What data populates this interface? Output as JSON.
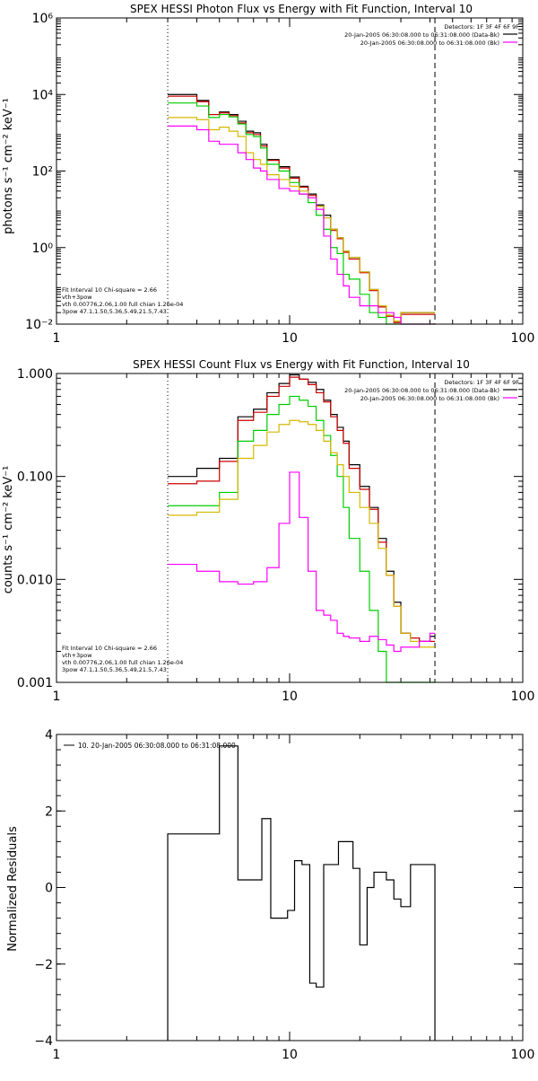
{
  "chart_data": [
    {
      "type": "line",
      "title": "SPEX HESSI Photon Flux vs Energy with Fit Function, Interval 10",
      "ylabel": "photons s⁻¹ cm⁻² keV⁻¹",
      "xlabel": "",
      "xscale": "log",
      "yscale": "log",
      "xlim": [
        1,
        100
      ],
      "ylim": [
        0.01,
        1000000
      ],
      "x_ticks": [
        {
          "v": 1,
          "label": "1"
        },
        {
          "v": 10,
          "label": "10"
        },
        {
          "v": 100,
          "label": "100"
        }
      ],
      "y_ticks": [
        {
          "v": 0.01,
          "label": "10⁻²"
        },
        {
          "v": 1,
          "label": "10⁰"
        },
        {
          "v": 100,
          "label": "10²"
        },
        {
          "v": 10000,
          "label": "10⁴"
        },
        {
          "v": 1000000,
          "label": "10⁶"
        }
      ],
      "vlines": [
        {
          "x": 3.0,
          "style": "dotted"
        },
        {
          "x": 42,
          "style": "dashed"
        }
      ],
      "legend_top": [
        "Detectors: 1F 3F 4F 6F 9F",
        "20-Jan-2005 06:30:08.000 to 06:31:08.000 (Data-Bk)",
        "20-Jan-2005 06:30:08.000 to 06:31:08.000 (Bk)"
      ],
      "legend_top_colors": [
        "",
        "#000000",
        "#ff00ff"
      ],
      "legend_bottom": [
        "Fit Interval 10    Chi-square = 2.66",
        "vth+3pow",
        "vth 0.00776,2.06,1.00  full chian 1.26e-04",
        "3pow 47.1,1.50,5.36,5.49,21.5,7.43"
      ],
      "legend_bottom_colors": [
        "",
        "#cc0000",
        "#00cc00",
        "#d4b800"
      ],
      "edges": [
        3.0,
        3.5,
        4.0,
        4.5,
        5.0,
        5.5,
        6.0,
        6.5,
        7.0,
        7.5,
        8.0,
        9.0,
        10.0,
        11.0,
        12.0,
        13.0,
        14.0,
        15.0,
        16.0,
        17.0,
        18.0,
        20.0,
        22.0,
        24.0,
        26.0,
        28.0,
        30.0,
        35.0,
        42.0
      ],
      "series": [
        {
          "color": "#000000",
          "values": [
            10000,
            10000,
            7000,
            3000,
            3500,
            3000,
            2000,
            1100,
            1000,
            500,
            200,
            130,
            70,
            40,
            25,
            13,
            7,
            3,
            1.8,
            0.8,
            0.55,
            0.23,
            0.08,
            0.03,
            0.017,
            0.012,
            0.02,
            0.02
          ]
        },
        {
          "color": "#cc0000",
          "values": [
            9000,
            9000,
            6500,
            3000,
            3300,
            2800,
            1800,
            1000,
            900,
            450,
            190,
            120,
            65,
            38,
            23,
            12,
            6,
            2.8,
            1.7,
            0.75,
            0.5,
            0.22,
            0.075,
            0.028,
            0.016,
            0.011,
            0.018,
            0.018
          ]
        },
        {
          "color": "#00cc00",
          "values": [
            6000,
            6000,
            5000,
            2500,
            3000,
            2600,
            1700,
            900,
            800,
            400,
            150,
            100,
            50,
            25,
            15,
            7,
            3,
            1,
            0.7,
            0.2,
            0.15,
            0.06,
            0.02,
            0.015,
            0.008,
            0.006,
            0.01,
            0.01
          ]
        },
        {
          "color": "#d4b800",
          "values": [
            2500,
            2500,
            2200,
            1200,
            1400,
            1100,
            800,
            300,
            200,
            150,
            80,
            60,
            40,
            30,
            20,
            12,
            6,
            3,
            1.8,
            0.8,
            0.55,
            0.23,
            0.08,
            0.03,
            0.017,
            0.012,
            0.02,
            0.02
          ]
        },
        {
          "color": "#ff00ff",
          "values": [
            1500,
            1500,
            1200,
            600,
            500,
            500,
            300,
            200,
            120,
            100,
            60,
            35,
            30,
            25,
            20,
            10,
            2,
            0.5,
            0.2,
            0.1,
            0.05,
            0.03,
            0.03,
            0.02,
            0.02,
            0.015,
            0.01,
            0.01
          ]
        }
      ]
    },
    {
      "type": "line",
      "title": "SPEX HESSI Count Flux vs Energy with Fit Function, Interval 10",
      "ylabel": "counts s⁻¹ cm⁻² keV⁻¹",
      "xlabel": "",
      "xscale": "log",
      "yscale": "log",
      "xlim": [
        1,
        100
      ],
      "ylim": [
        0.001,
        1.0
      ],
      "x_ticks": [
        {
          "v": 1,
          "label": "1"
        },
        {
          "v": 10,
          "label": "10"
        },
        {
          "v": 100,
          "label": "100"
        }
      ],
      "y_ticks": [
        {
          "v": 0.001,
          "label": "0.001"
        },
        {
          "v": 0.01,
          "label": "0.010"
        },
        {
          "v": 0.1,
          "label": "0.100"
        },
        {
          "v": 1.0,
          "label": "1.000"
        }
      ],
      "vlines": [
        {
          "x": 3.0,
          "style": "dotted"
        },
        {
          "x": 42,
          "style": "dashed"
        }
      ],
      "legend_top": [
        "Detectors: 1F 3F 4F 6F 9F",
        "20-Jan-2005 06:30:08.000 to 06:31:08.000 (Data-Bk)",
        "20-Jan-2005 06:30:08.000 to 06:31:08.000 (Bk)"
      ],
      "legend_top_colors": [
        "",
        "#000000",
        "#ff00ff"
      ],
      "legend_bottom": [
        "Fit Interval 10    Chi-square = 2.66",
        "vth+3pow",
        "vth 0.00776,2.06,1.00  full chian 1.26e-04",
        "3pow 47.1,1.50,5.36,5.49,21.5,7.43"
      ],
      "legend_bottom_colors": [
        "",
        "#cc0000",
        "#00cc00",
        "#d4b800"
      ],
      "edges": [
        3.0,
        4.0,
        5.0,
        6.0,
        7.0,
        8.0,
        9.0,
        10.0,
        11.0,
        12.0,
        13.0,
        14.0,
        15.0,
        16.0,
        17.0,
        18.0,
        20.0,
        22.0,
        24.0,
        26.0,
        28.0,
        30.0,
        33.0,
        36.0,
        40.0,
        42.0
      ],
      "series": [
        {
          "color": "#000000",
          "values": [
            0.1,
            0.12,
            0.15,
            0.38,
            0.45,
            0.65,
            0.8,
            0.97,
            0.88,
            0.82,
            0.7,
            0.55,
            0.4,
            0.3,
            0.22,
            0.13,
            0.08,
            0.05,
            0.025,
            0.012,
            0.006,
            0.003,
            0.0027,
            0.0025,
            0.0028
          ]
        },
        {
          "color": "#cc0000",
          "values": [
            0.085,
            0.09,
            0.14,
            0.35,
            0.42,
            0.6,
            0.75,
            0.92,
            0.88,
            0.78,
            0.65,
            0.53,
            0.38,
            0.28,
            0.21,
            0.12,
            0.075,
            0.048,
            0.023,
            0.011,
            0.0055,
            0.003,
            0.0027,
            0.0025,
            0.0025
          ]
        },
        {
          "color": "#00cc00",
          "values": [
            0.052,
            0.052,
            0.07,
            0.22,
            0.28,
            0.4,
            0.5,
            0.6,
            0.55,
            0.48,
            0.35,
            0.25,
            0.16,
            0.1,
            0.05,
            0.025,
            0.012,
            0.005,
            0.002,
            0.001,
            0.001,
            0.001,
            0.001,
            0.001,
            0.001
          ]
        },
        {
          "color": "#d4b800",
          "values": [
            0.042,
            0.045,
            0.06,
            0.15,
            0.2,
            0.27,
            0.32,
            0.35,
            0.34,
            0.32,
            0.28,
            0.22,
            0.17,
            0.13,
            0.1,
            0.07,
            0.05,
            0.035,
            0.02,
            0.011,
            0.0055,
            0.003,
            0.0025,
            0.0022,
            0.0022
          ]
        },
        {
          "color": "#ff00ff",
          "values": [
            0.014,
            0.012,
            0.0095,
            0.009,
            0.0095,
            0.013,
            0.035,
            0.11,
            0.04,
            0.012,
            0.005,
            0.0045,
            0.004,
            0.003,
            0.0028,
            0.0027,
            0.0025,
            0.0028,
            0.0026,
            0.0023,
            0.002,
            0.0022,
            0.0022,
            0.0025,
            0.003
          ]
        }
      ]
    },
    {
      "type": "line",
      "title": "",
      "ylabel": "Normalized Residuals",
      "xlabel": "",
      "xscale": "log",
      "yscale": "linear",
      "xlim": [
        1,
        100
      ],
      "ylim": [
        -4,
        4
      ],
      "x_ticks": [
        {
          "v": 1,
          "label": "1"
        },
        {
          "v": 10,
          "label": "10"
        },
        {
          "v": 100,
          "label": "100"
        }
      ],
      "y_ticks": [
        {
          "v": -4,
          "label": "−4"
        },
        {
          "v": -2,
          "label": "−2"
        },
        {
          "v": 0,
          "label": "0"
        },
        {
          "v": 2,
          "label": "2"
        },
        {
          "v": 4,
          "label": "4"
        }
      ],
      "vlines": [],
      "legend_top": [
        "10. 20-Jan-2005 06:30:08.000 to 06:31:08.000"
      ],
      "legend_top_colors": [
        "#000000"
      ],
      "legend_bottom": [],
      "legend_bottom_colors": [],
      "edges": [
        3.0,
        4.0,
        5.0,
        6.0,
        7.0,
        7.6,
        8.3,
        9.0,
        9.8,
        10.5,
        11.3,
        12.2,
        13.0,
        14.0,
        15.0,
        16.2,
        17.4,
        18.7,
        20.0,
        21.5,
        23.0,
        24.5,
        26.0,
        28.0,
        30.0,
        33.0,
        37.0,
        42.0
      ],
      "drop_to_min": true,
      "series": [
        {
          "color": "#000000",
          "values": [
            1.4,
            1.4,
            3.7,
            0.2,
            0.2,
            1.8,
            -0.8,
            -0.8,
            -0.6,
            0.7,
            0.6,
            -2.5,
            -2.6,
            0.6,
            0.6,
            1.2,
            1.2,
            0.5,
            -1.5,
            0.0,
            0.4,
            0.4,
            0.2,
            -0.3,
            -0.5,
            0.6,
            0.6
          ]
        }
      ]
    }
  ]
}
